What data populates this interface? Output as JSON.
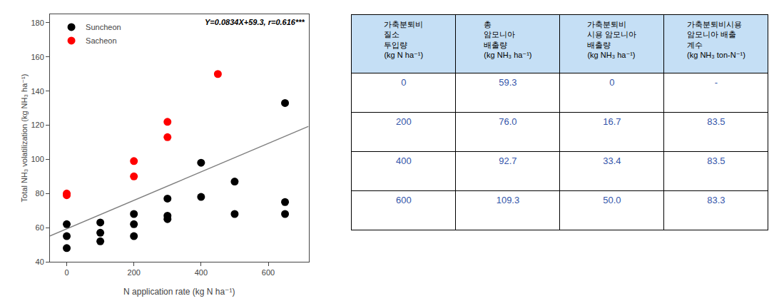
{
  "chart_data": [
    {
      "type": "scatter",
      "xlabel": "N application rate (kg N ha⁻¹)",
      "ylabel": "Total NH₃ volatilization (kg NH₃ ha⁻¹)",
      "xlim": [
        -50,
        720
      ],
      "ylim": [
        40,
        185
      ],
      "xticks": [
        0,
        200,
        400,
        600
      ],
      "yticks": [
        40,
        60,
        80,
        100,
        120,
        140,
        160,
        180
      ],
      "grid": false,
      "legend": "upper left",
      "annotations": [
        {
          "text": "Y=0.0834X+59.3, r=0.616***"
        }
      ],
      "series": [
        {
          "type": "line",
          "color": "gray",
          "line_style": "solid",
          "x": [
            -50,
            720
          ],
          "values": [
            55.13,
            119.348
          ]
        },
        {
          "name": "Suncheon",
          "color": "black",
          "marker": "circle",
          "x": [
            0,
            0,
            0,
            100,
            100,
            100,
            200,
            200,
            200,
            300,
            300,
            300,
            400,
            400,
            500,
            500,
            650,
            650,
            650
          ],
          "values": [
            62,
            55,
            48,
            63,
            57,
            52,
            68,
            62,
            55,
            77,
            67,
            65,
            98,
            78,
            87,
            68,
            133,
            75,
            68
          ]
        },
        {
          "name": "Sacheon",
          "color": "red",
          "marker": "circle",
          "x": [
            0,
            0,
            200,
            200,
            300,
            300,
            450
          ],
          "values": [
            80,
            79,
            99,
            90,
            122,
            113,
            150
          ]
        }
      ]
    },
    {
      "type": "table",
      "header_color": "#c5dff5",
      "color": "#3355aa",
      "columns": [
        [
          "가축분퇴비",
          "질소",
          "투입량",
          "(kg N ha⁻¹)"
        ],
        [
          "총",
          "암모니아",
          "배출량",
          "(kg NH₃ ha⁻¹)"
        ],
        [
          "가축분퇴비",
          "시용 암모니아",
          "배출량",
          "(kg NH₃ ha⁻¹)"
        ],
        [
          "가축분퇴비시용",
          "암모니아 배출",
          "계수",
          "(kg NH₃ ton-N⁻¹)"
        ]
      ],
      "rows": [
        [
          "0",
          "59.3",
          "0",
          "-"
        ],
        [
          "200",
          "76.0",
          "16.7",
          "83.5"
        ],
        [
          "400",
          "92.7",
          "33.4",
          "83.5"
        ],
        [
          "600",
          "109.3",
          "50.0",
          "83.3"
        ]
      ]
    }
  ]
}
